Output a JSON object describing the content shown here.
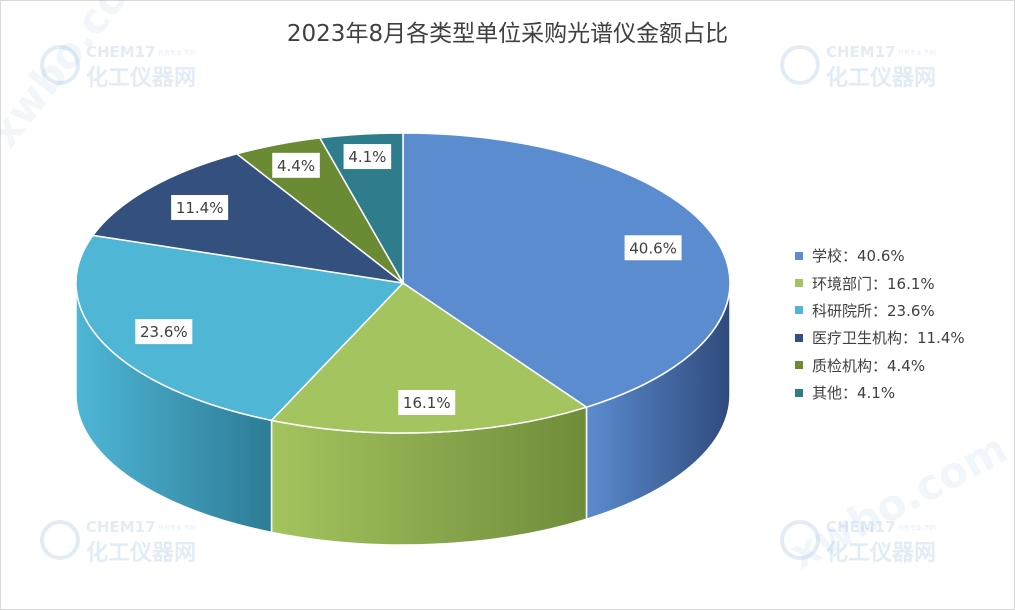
{
  "chart_data": {
    "type": "pie",
    "title": "2023年8月各类型单位采购光谱仪金额占比",
    "legend_position": "right",
    "slices": [
      {
        "name": "学校",
        "value": 40.6,
        "label": "40.6%",
        "legend": "学校：40.6%",
        "color": "#5b8ccf",
        "side": "#2f4a7c"
      },
      {
        "name": "环境部门",
        "value": 16.1,
        "label": "16.1%",
        "legend": "环境部门：16.1%",
        "color": "#a4c45f",
        "side": "#6f8c3a"
      },
      {
        "name": "科研院所",
        "value": 23.6,
        "label": "23.6%",
        "legend": "科研院所：23.6%",
        "color": "#4fb6d6",
        "side": "#2d7c96"
      },
      {
        "name": "医疗卫生机构",
        "value": 11.4,
        "label": "11.4%",
        "legend": "医疗卫生机构：11.4%",
        "color": "#34507e",
        "side": "#1e2e4a"
      },
      {
        "name": "质检机构",
        "value": 4.4,
        "label": "4.4%",
        "legend": "质检机构：4.4%",
        "color": "#6a8a33",
        "side": "#465c22"
      },
      {
        "name": "其他",
        "value": 4.1,
        "label": "4.1%",
        "legend": "其他：4.1%",
        "color": "#2f7d8c",
        "side": "#1d4f59"
      }
    ]
  },
  "watermark": {
    "brand": "CHEM17",
    "slogan": "化工仪器网",
    "tagline": "只有专业 不同",
    "domain": "xwbo.com"
  }
}
